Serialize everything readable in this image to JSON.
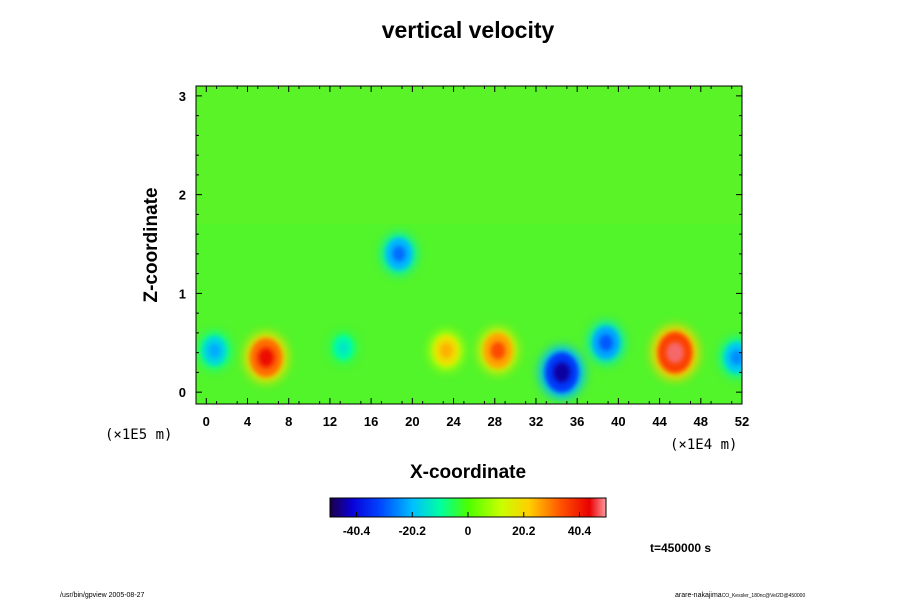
{
  "chart_data": {
    "type": "heatmap",
    "title": "vertical velocity",
    "xlabel": "X-coordinate",
    "ylabel": "Z-coordinate",
    "x_unit": "(×1E4 m)",
    "z_unit": "(×1E5 m)",
    "xlim": [
      -1,
      52
    ],
    "zlim": [
      -0.12,
      3.1
    ],
    "x_ticks": [
      "0",
      "4",
      "8",
      "12",
      "16",
      "20",
      "24",
      "28",
      "32",
      "36",
      "40",
      "44",
      "48",
      "52"
    ],
    "x_tick_values": [
      0,
      4,
      8,
      12,
      16,
      20,
      24,
      28,
      32,
      36,
      40,
      44,
      48,
      52
    ],
    "z_ticks": [
      "0",
      "1",
      "2",
      "3"
    ],
    "z_tick_values": [
      0,
      1,
      2,
      3
    ],
    "colorbar": {
      "min": -50,
      "max": 50,
      "ticks": [
        "-40.4",
        "-20.2",
        "0",
        "20.2",
        "40.4"
      ],
      "tick_values": [
        -40.4,
        -20.2,
        0,
        20.2,
        40.4
      ]
    },
    "features": [
      {
        "kind": "updraft",
        "x": 5.8,
        "z": 0.35,
        "w": 42
      },
      {
        "kind": "updraft",
        "x": 23.3,
        "z": 0.42,
        "w": 25
      },
      {
        "kind": "updraft",
        "x": 28.3,
        "z": 0.42,
        "w": 35
      },
      {
        "kind": "updraft",
        "x": 45.5,
        "z": 0.4,
        "w": 48
      },
      {
        "kind": "downdraft",
        "x": 0.8,
        "z": 0.42,
        "w": -22
      },
      {
        "kind": "downdraft",
        "x": 13.3,
        "z": 0.45,
        "w": -14
      },
      {
        "kind": "downdraft",
        "x": 18.7,
        "z": 1.4,
        "w": -28
      },
      {
        "kind": "downdraft",
        "x": 34.5,
        "z": 0.2,
        "w": -45
      },
      {
        "kind": "downdraft",
        "x": 38.8,
        "z": 0.5,
        "w": -30
      },
      {
        "kind": "downdraft",
        "x": 51.5,
        "z": 0.35,
        "w": -25
      }
    ]
  },
  "time_label": "t=450000 s",
  "footer_left": "/usr/bin/gpview 2005-08-27",
  "footer_right": "arare-nakajima",
  "footer_right_small": "CO_Kessler_180nc@Vel2D@450000"
}
